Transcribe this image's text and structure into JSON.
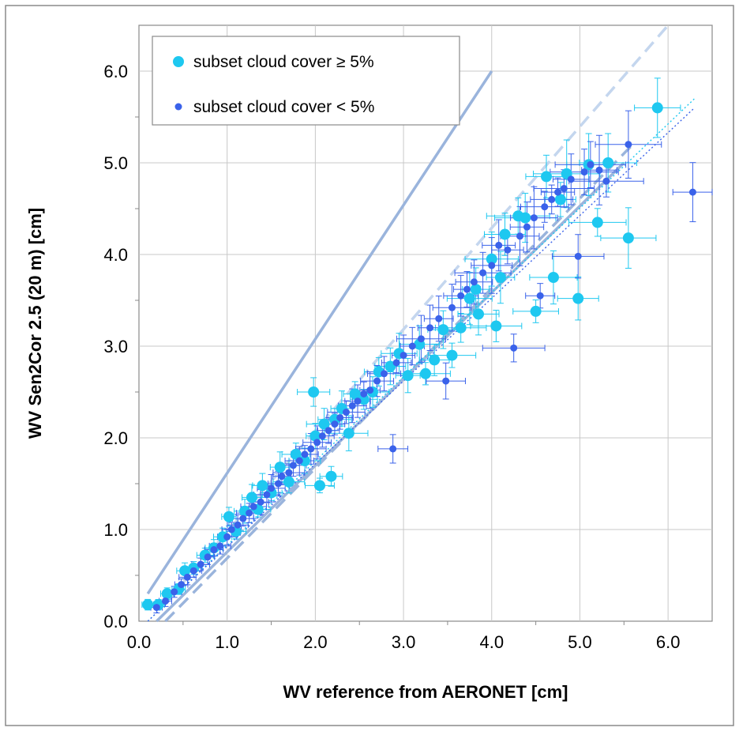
{
  "chart_data": {
    "type": "scatter",
    "xlabel": "WV reference from AERONET   [cm]",
    "ylabel": "WV Sen2Cor 2.5  (20 m)  [cm]",
    "xlim": [
      0.0,
      6.5
    ],
    "ylim": [
      0.0,
      6.5
    ],
    "x_ticks": [
      "0.0",
      "1.0",
      "2.0",
      "3.0",
      "4.0",
      "5.0",
      "6.0"
    ],
    "y_ticks": [
      "0.0",
      "1.0",
      "2.0",
      "3.0",
      "4.0",
      "5.0",
      "6.0"
    ],
    "grid": true,
    "legend_position": "top-left",
    "series": [
      {
        "name": "subset cloud cover ≥ 5%",
        "color": "#1ec8f0",
        "marker": "large-circle",
        "error_bars": true,
        "points": [
          [
            0.1,
            0.18
          ],
          [
            0.22,
            0.18
          ],
          [
            0.32,
            0.3
          ],
          [
            0.45,
            0.35
          ],
          [
            0.52,
            0.55
          ],
          [
            0.62,
            0.58
          ],
          [
            0.75,
            0.72
          ],
          [
            0.85,
            0.8
          ],
          [
            0.95,
            0.92
          ],
          [
            1.02,
            1.14
          ],
          [
            1.1,
            0.98
          ],
          [
            1.2,
            1.2
          ],
          [
            1.28,
            1.35
          ],
          [
            1.35,
            1.22
          ],
          [
            1.4,
            1.48
          ],
          [
            1.5,
            1.4
          ],
          [
            1.6,
            1.68
          ],
          [
            1.7,
            1.52
          ],
          [
            1.78,
            1.82
          ],
          [
            1.88,
            1.75
          ],
          [
            1.98,
            2.5
          ],
          [
            2.0,
            2.02
          ],
          [
            2.05,
            1.48
          ],
          [
            2.1,
            2.15
          ],
          [
            2.18,
            1.58
          ],
          [
            2.22,
            2.2
          ],
          [
            2.3,
            2.32
          ],
          [
            2.38,
            2.05
          ],
          [
            2.45,
            2.48
          ],
          [
            2.55,
            2.42
          ],
          [
            2.65,
            2.5
          ],
          [
            2.72,
            2.72
          ],
          [
            2.85,
            2.78
          ],
          [
            2.95,
            2.92
          ],
          [
            3.05,
            2.68
          ],
          [
            3.18,
            3.02
          ],
          [
            3.25,
            2.7
          ],
          [
            3.35,
            2.85
          ],
          [
            3.45,
            3.18
          ],
          [
            3.55,
            2.9
          ],
          [
            3.65,
            3.2
          ],
          [
            3.75,
            3.52
          ],
          [
            3.82,
            3.62
          ],
          [
            3.85,
            3.35
          ],
          [
            4.0,
            3.95
          ],
          [
            4.05,
            3.22
          ],
          [
            4.1,
            3.75
          ],
          [
            4.15,
            4.22
          ],
          [
            4.3,
            4.42
          ],
          [
            4.38,
            4.4
          ],
          [
            4.5,
            3.38
          ],
          [
            4.62,
            4.85
          ],
          [
            4.7,
            3.75
          ],
          [
            4.78,
            4.6
          ],
          [
            4.85,
            4.88
          ],
          [
            4.98,
            3.52
          ],
          [
            5.1,
            4.98
          ],
          [
            5.2,
            4.35
          ],
          [
            5.32,
            5.0
          ],
          [
            5.55,
            4.18
          ],
          [
            5.88,
            5.6
          ]
        ]
      },
      {
        "name": "subset cloud cover < 5%",
        "color": "#3a62ea",
        "marker": "small-circle",
        "error_bars": true,
        "points": [
          [
            0.2,
            0.15
          ],
          [
            0.3,
            0.22
          ],
          [
            0.4,
            0.32
          ],
          [
            0.48,
            0.4
          ],
          [
            0.55,
            0.48
          ],
          [
            0.62,
            0.55
          ],
          [
            0.7,
            0.62
          ],
          [
            0.78,
            0.7
          ],
          [
            0.85,
            0.78
          ],
          [
            0.92,
            0.82
          ],
          [
            1.0,
            0.92
          ],
          [
            1.05,
            1.0
          ],
          [
            1.12,
            1.05
          ],
          [
            1.18,
            1.12
          ],
          [
            1.25,
            1.18
          ],
          [
            1.3,
            1.25
          ],
          [
            1.38,
            1.3
          ],
          [
            1.45,
            1.38
          ],
          [
            1.5,
            1.45
          ],
          [
            1.58,
            1.5
          ],
          [
            1.62,
            1.58
          ],
          [
            1.7,
            1.62
          ],
          [
            1.75,
            1.7
          ],
          [
            1.82,
            1.75
          ],
          [
            1.88,
            1.82
          ],
          [
            1.95,
            1.88
          ],
          [
            2.02,
            1.95
          ],
          [
            2.08,
            2.02
          ],
          [
            2.15,
            2.08
          ],
          [
            2.22,
            2.15
          ],
          [
            2.28,
            2.22
          ],
          [
            2.35,
            2.28
          ],
          [
            2.42,
            2.35
          ],
          [
            2.48,
            2.4
          ],
          [
            2.55,
            2.48
          ],
          [
            2.62,
            2.52
          ],
          [
            2.7,
            2.62
          ],
          [
            2.78,
            2.7
          ],
          [
            2.88,
            1.88
          ],
          [
            2.92,
            2.82
          ],
          [
            3.0,
            2.9
          ],
          [
            3.1,
            3.0
          ],
          [
            3.2,
            3.08
          ],
          [
            3.3,
            3.2
          ],
          [
            3.4,
            3.3
          ],
          [
            3.48,
            2.62
          ],
          [
            3.55,
            3.42
          ],
          [
            3.65,
            3.55
          ],
          [
            3.72,
            3.62
          ],
          [
            3.8,
            3.7
          ],
          [
            3.9,
            3.8
          ],
          [
            4.0,
            3.88
          ],
          [
            4.08,
            4.1
          ],
          [
            4.18,
            4.05
          ],
          [
            4.25,
            2.98
          ],
          [
            4.32,
            4.2
          ],
          [
            4.4,
            4.3
          ],
          [
            4.48,
            4.4
          ],
          [
            4.55,
            3.55
          ],
          [
            4.6,
            4.52
          ],
          [
            4.68,
            4.6
          ],
          [
            4.75,
            4.68
          ],
          [
            4.82,
            4.72
          ],
          [
            4.9,
            4.82
          ],
          [
            4.98,
            3.98
          ],
          [
            5.05,
            4.9
          ],
          [
            5.12,
            4.98
          ],
          [
            5.22,
            4.92
          ],
          [
            5.3,
            4.8
          ],
          [
            5.55,
            5.2
          ],
          [
            6.28,
            4.68
          ]
        ]
      }
    ],
    "lines": [
      {
        "style": "solid",
        "color": "#9ab4dc",
        "x": [
          0.1,
          4.0
        ],
        "y": [
          0.3,
          6.0
        ]
      },
      {
        "style": "solid",
        "color": "#9ab4dc",
        "x": [
          0.2,
          5.5
        ],
        "y": [
          0.0,
          5.0
        ]
      },
      {
        "style": "dashed",
        "color": "#c4d6ee",
        "x": [
          0.3,
          6.0
        ],
        "y": [
          0.2,
          6.5
        ]
      },
      {
        "style": "dashed",
        "color": "#9ab4dc",
        "x": [
          0.3,
          5.6
        ],
        "y": [
          0.0,
          5.2
        ]
      },
      {
        "style": "dotted",
        "color": "#1ec8f0",
        "x": [
          0.1,
          6.3
        ],
        "y": [
          0.0,
          5.7
        ]
      },
      {
        "style": "dotted",
        "color": "#3a62ea",
        "x": [
          0.1,
          6.3
        ],
        "y": [
          0.0,
          5.6
        ]
      }
    ]
  }
}
